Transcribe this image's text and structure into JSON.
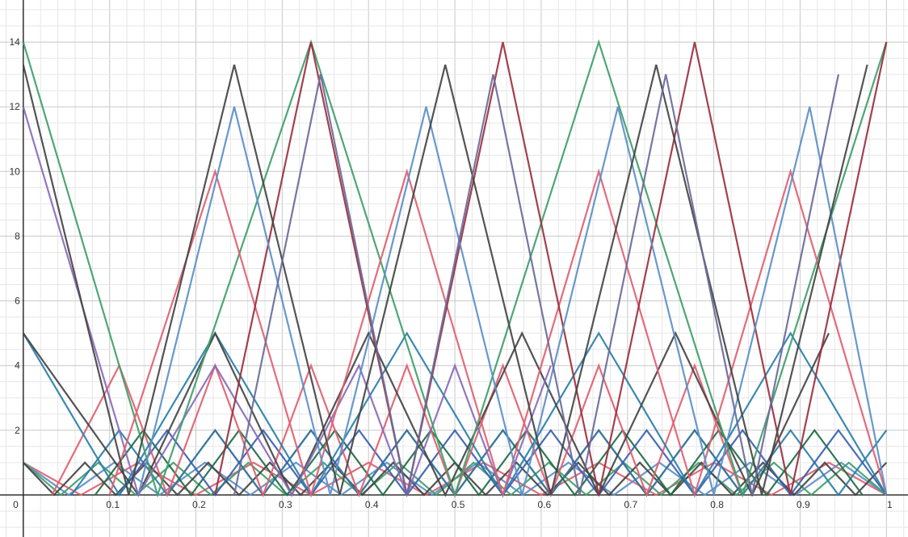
{
  "chart_data": {
    "type": "line",
    "title": "",
    "xlabel": "",
    "ylabel": "",
    "xlim": [
      -0.027,
      1.025
    ],
    "ylim": [
      -1.3,
      15.3
    ],
    "grid": true,
    "legend": "none",
    "x_ticks": [
      "0",
      "0.1",
      "0.2",
      "0.3",
      "0.4",
      "0.5",
      "0.6",
      "0.7",
      "0.8",
      "0.9",
      "1"
    ],
    "y_ticks": [
      "2",
      "4",
      "6",
      "8",
      "10",
      "12",
      "14"
    ],
    "series_note_shape": "each curve is a repeating V-shaped (sawtooth) wave; x values are vertex/peak x-coordinates, y values are heights",
    "series": [
      {
        "color": "#e06070",
        "x": [
          0,
          0.0667,
          0.1333,
          0.2,
          0.2667,
          0.3333,
          0.4,
          0.4667,
          0.5333,
          0.6,
          0.6667,
          0.7333,
          0.8,
          0.8667,
          0.9333,
          1.0
        ],
        "y": [
          1,
          0,
          1,
          0,
          1,
          0,
          1,
          0,
          1,
          0,
          1,
          0,
          1,
          0,
          1,
          0
        ]
      },
      {
        "color": "#5b8fc7",
        "x": [
          0,
          0.0526,
          0.1053,
          0.1579,
          0.2105,
          0.2632,
          0.3158,
          0.3684,
          0.4211,
          0.4737,
          0.5263,
          0.5789,
          0.6316,
          0.6842,
          0.7368,
          0.7895,
          0.8421,
          0.8947,
          0.9474,
          1.0
        ],
        "y": [
          1,
          0,
          1,
          0,
          1,
          0,
          1,
          0,
          1,
          0,
          1,
          0,
          1,
          0,
          1,
          0,
          1,
          0,
          1,
          0
        ]
      },
      {
        "color": "#3f9e6a",
        "x": [
          0,
          0.0435,
          0.087,
          0.1304,
          0.1739,
          0.2174,
          0.2609,
          0.3043,
          0.3478,
          0.3913,
          0.4348,
          0.4783,
          0.5217,
          0.5652,
          0.6087,
          0.6522,
          0.6957,
          0.7391,
          0.7826,
          0.8261,
          0.8696,
          0.913,
          0.9565,
          1.0
        ],
        "y": [
          1,
          0,
          1,
          0,
          1,
          0,
          1,
          0,
          1,
          0,
          1,
          0,
          1,
          0,
          1,
          0,
          1,
          0,
          1,
          0,
          1,
          0,
          1,
          0
        ]
      },
      {
        "color": "#444444",
        "x": [
          0,
          0.0357,
          0.0714,
          0.1071,
          0.1429,
          0.1786,
          0.2143,
          0.25,
          0.2857,
          0.3214,
          0.3571,
          0.3929,
          0.4286,
          0.4643,
          0.5,
          0.5357,
          0.5714,
          0.6071,
          0.6429,
          0.6786,
          0.7143,
          0.75,
          0.7857,
          0.8214,
          0.8571,
          0.8929,
          0.9286,
          0.9643,
          1.0
        ],
        "y": [
          1,
          0,
          1,
          0,
          1,
          0,
          1,
          0,
          1,
          0,
          1,
          0,
          1,
          0,
          1,
          0,
          1,
          0,
          1,
          0,
          1,
          0,
          1,
          0,
          1,
          0,
          1,
          0,
          1
        ]
      },
      {
        "color": "#9a3040",
        "x": [
          0.1667,
          0.2222,
          0.2778,
          0.3333,
          0.3889,
          0.4444,
          0.5,
          0.5556,
          0.6111,
          0.6667,
          0.7222,
          0.7778,
          0.8333
        ],
        "y": [
          0,
          2,
          0,
          2,
          0,
          2,
          0,
          2,
          0,
          2,
          0,
          2,
          0
        ]
      },
      {
        "color": "#2a7fa8",
        "x": [
          0.0556,
          0.1111,
          0.1667,
          0.2222,
          0.2778,
          0.3333,
          0.3889,
          0.4444,
          0.5,
          0.5556,
          0.6111,
          0.6667,
          0.7222,
          0.7778,
          0.8333,
          0.8889,
          0.9444,
          1.0
        ],
        "y": [
          0,
          2,
          0,
          2,
          0,
          2,
          0,
          2,
          0,
          2,
          0,
          2,
          0,
          2,
          0,
          2,
          0,
          2
        ]
      },
      {
        "color": "#1e6b45",
        "x": [
          0.0833,
          0.1389,
          0.1944,
          0.25,
          0.3056,
          0.3611,
          0.4167,
          0.4722,
          0.5278,
          0.5833,
          0.6389,
          0.6944,
          0.75,
          0.8056,
          0.8611,
          0.9167,
          0.9722
        ],
        "y": [
          0,
          2,
          0,
          2,
          0,
          2,
          0,
          2,
          0,
          2,
          0,
          2,
          0,
          2,
          0,
          2,
          0
        ]
      },
      {
        "color": "#3a5fb0",
        "x": [
          0.1111,
          0.1667,
          0.2222,
          0.2778,
          0.3333,
          0.3889,
          0.4444,
          0.5,
          0.5556,
          0.6111,
          0.6667,
          0.7222,
          0.7778,
          0.8333,
          0.8889,
          0.9444,
          1.0
        ],
        "y": [
          0,
          2,
          0,
          2,
          0,
          2,
          0,
          2,
          0,
          2,
          0,
          2,
          0,
          2,
          0,
          2,
          0
        ]
      },
      {
        "color": "#e06070",
        "x": [
          0.0333,
          0.1111,
          0.1667,
          0.2222,
          0.2778,
          0.3333,
          0.3889,
          0.4444,
          0.5,
          0.5556,
          0.6111,
          0.6667,
          0.7222,
          0.7778,
          0.8333
        ],
        "y": [
          0,
          4,
          0,
          4,
          0,
          4,
          0,
          4,
          0,
          4,
          0,
          4,
          0,
          4,
          0
        ]
      },
      {
        "color": "#2a7fa8",
        "x": [
          0.0,
          0.1111,
          0.2222,
          0.3333,
          0.4444,
          0.5556,
          0.6667,
          0.7778,
          0.8889,
          1.0
        ],
        "y": [
          5,
          0,
          5,
          0,
          5,
          0,
          5,
          0,
          5,
          0
        ]
      },
      {
        "color": "#444444",
        "x": [
          0.0,
          0.1333,
          0.2222,
          0.3111,
          0.4,
          0.4889,
          0.5778,
          0.6667,
          0.7556,
          0.8444,
          0.9333
        ],
        "y": [
          5,
          0,
          5,
          0,
          5,
          0,
          5,
          0,
          5,
          0,
          5
        ]
      },
      {
        "color": "#8a6ab8",
        "x": [
          0.0,
          0.1333,
          0.2222,
          0.3111,
          0.3889,
          0.4444,
          0.5,
          0.5556,
          0.6111
        ],
        "y": [
          12,
          0,
          4,
          0,
          4,
          0,
          4,
          0,
          4
        ]
      },
      {
        "color": "#3f9e6a",
        "x": [
          0.0,
          0.1556,
          0.3333,
          0.5,
          0.6667,
          0.8333,
          1.0
        ],
        "y": [
          14,
          0,
          14,
          0,
          14,
          0,
          14
        ]
      },
      {
        "color": "#e06070",
        "x": [
          0.1,
          0.2222,
          0.3333,
          0.4444,
          0.5556,
          0.6667,
          0.7778,
          0.8889,
          1.0
        ],
        "y": [
          0,
          10,
          0,
          10,
          0,
          10,
          0,
          10,
          0
        ]
      },
      {
        "color": "#9a3040",
        "x": [
          0.2222,
          0.3333,
          0.4444,
          0.5556,
          0.6667,
          0.7778,
          0.8889,
          1.0
        ],
        "y": [
          0,
          14,
          0,
          14,
          0,
          14,
          0,
          14
        ]
      },
      {
        "color": "#5b8fc7",
        "x": [
          0.1333,
          0.2444,
          0.3556,
          0.4667,
          0.5778,
          0.6889,
          0.8,
          0.9111,
          1.0
        ],
        "y": [
          0,
          12,
          0,
          12,
          0,
          12,
          0,
          12,
          0
        ]
      },
      {
        "color": "#444444",
        "x": [
          0.0,
          0.1222,
          0.2444,
          0.3667,
          0.4889,
          0.6111,
          0.7333,
          0.8556,
          0.9778
        ],
        "y": [
          13.3,
          0,
          13.3,
          0,
          13.3,
          0,
          13.3,
          0,
          13.3
        ]
      },
      {
        "color": "#6a6a9a",
        "x": [
          0.2444,
          0.3444,
          0.4444,
          0.5444,
          0.6444,
          0.7444,
          0.8444,
          0.9444
        ],
        "y": [
          0,
          13,
          0,
          13,
          0,
          13,
          0,
          13
        ]
      }
    ]
  }
}
